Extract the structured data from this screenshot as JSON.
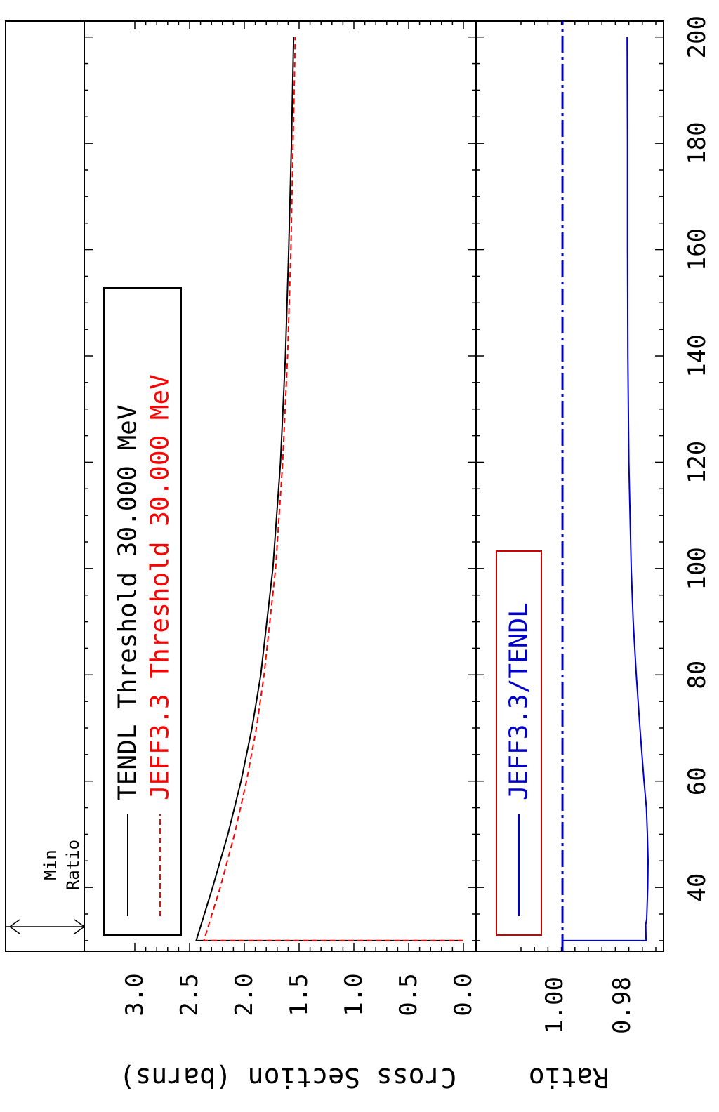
{
  "chart_data": [
    {
      "type": "line",
      "panel": "cross-section",
      "xlabel": "",
      "ylabel": "Cross Section (barns)",
      "xlim": [
        28,
        203
      ],
      "ylim": [
        -0.15,
        3.4
      ],
      "x_ticks": [
        "40",
        "60",
        "80",
        "100",
        "120",
        "140",
        "160",
        "180",
        "200"
      ],
      "y_ticks": [
        "0.0",
        "0.5",
        "1.0",
        "1.5",
        "2.0",
        "2.5",
        "3.0"
      ],
      "legend_placement": "left-center",
      "series": [
        {
          "name": "TENDL Threshold 30.000 MeV",
          "color": "#000000",
          "dash": "solid",
          "points": [
            [
              30,
              0
            ],
            [
              30,
              2.44
            ],
            [
              40,
              2.29
            ],
            [
              50,
              2.15
            ],
            [
              60,
              2.03
            ],
            [
              70,
              1.93
            ],
            [
              80,
              1.85
            ],
            [
              100,
              1.74
            ],
            [
              120,
              1.67
            ],
            [
              140,
              1.625
            ],
            [
              160,
              1.595
            ],
            [
              180,
              1.57
            ],
            [
              200,
              1.55
            ]
          ]
        },
        {
          "name": "JEFF3.3 Threshold 30.000 MeV",
          "color": "#ff0000",
          "dash": "dashed",
          "points": [
            [
              30,
              0
            ],
            [
              30,
              2.37
            ],
            [
              40,
              2.22
            ],
            [
              50,
              2.09
            ],
            [
              60,
              1.98
            ],
            [
              70,
              1.89
            ],
            [
              80,
              1.82
            ],
            [
              100,
              1.715
            ],
            [
              120,
              1.65
            ],
            [
              140,
              1.605
            ],
            [
              160,
              1.575
            ],
            [
              180,
              1.555
            ],
            [
              200,
              1.535
            ]
          ]
        }
      ]
    },
    {
      "type": "line",
      "panel": "ratio",
      "xlabel": "",
      "ylabel": "Ratio",
      "xlim": [
        28,
        203
      ],
      "ylim": [
        0.9645,
        1.0135
      ],
      "x_ticks": [
        "40",
        "60",
        "80",
        "100",
        "120",
        "140",
        "160",
        "180",
        "200"
      ],
      "y_ticks": [
        "0.98",
        "1.00"
      ],
      "legend_placement": "left-center",
      "reference_line": {
        "y": 0.9977,
        "color": "#0000cc",
        "dash": "dash-dot"
      },
      "series": [
        {
          "name": "JEFF3.3/TENDL",
          "color": "#0000cc",
          "dash": "solid",
          "points": [
            [
              30,
              0.9977
            ],
            [
              30,
              0.9729
            ],
            [
              33,
              0.973
            ],
            [
              34,
              0.9727
            ],
            [
              40,
              0.9724
            ],
            [
              45,
              0.9723
            ],
            [
              50,
              0.9725
            ],
            [
              55,
              0.9728
            ],
            [
              60,
              0.9735
            ],
            [
              70,
              0.9747
            ],
            [
              80,
              0.9758
            ],
            [
              90,
              0.9767
            ],
            [
              100,
              0.9773
            ],
            [
              120,
              0.978
            ],
            [
              140,
              0.9783
            ],
            [
              160,
              0.9784
            ],
            [
              180,
              0.9784
            ],
            [
              200,
              0.9785
            ]
          ]
        }
      ]
    }
  ],
  "annotation": {
    "line1": "Min",
    "line2": "Ratio"
  }
}
